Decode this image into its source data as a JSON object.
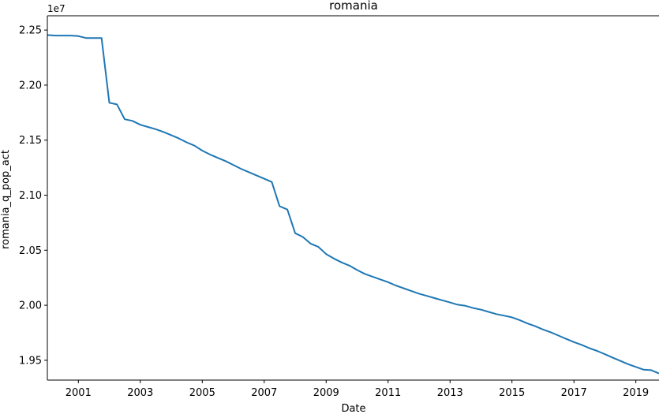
{
  "chart_data": {
    "type": "line",
    "title": "romania",
    "xlabel": "Date",
    "ylabel": "romania_q_pop_act",
    "y_offset_label": "1e7",
    "y_scale": 10000000,
    "xlim": [
      "2000-01-01",
      "2019-10-01"
    ],
    "ylim": [
      1.932,
      2.263
    ],
    "x_ticks": [
      {
        "label": "2001",
        "date": "2001-01-01"
      },
      {
        "label": "2003",
        "date": "2003-01-01"
      },
      {
        "label": "2005",
        "date": "2005-01-01"
      },
      {
        "label": "2007",
        "date": "2007-01-01"
      },
      {
        "label": "2009",
        "date": "2009-01-01"
      },
      {
        "label": "2011",
        "date": "2011-01-01"
      },
      {
        "label": "2013",
        "date": "2013-01-01"
      },
      {
        "label": "2015",
        "date": "2015-01-01"
      },
      {
        "label": "2017",
        "date": "2017-01-01"
      },
      {
        "label": "2019",
        "date": "2019-01-01"
      }
    ],
    "y_ticks": [
      {
        "label": "1.95",
        "value": 1.95
      },
      {
        "label": "2.00",
        "value": 2.0
      },
      {
        "label": "2.05",
        "value": 2.05
      },
      {
        "label": "2.10",
        "value": 2.1
      },
      {
        "label": "2.15",
        "value": 2.15
      },
      {
        "label": "2.20",
        "value": 2.2
      },
      {
        "label": "2.25",
        "value": 2.25
      }
    ],
    "grid": false,
    "line_color": "#1f77b4",
    "series": [
      {
        "x": [
          "2000-01-01",
          "2000-04-01",
          "2000-07-01",
          "2000-10-01",
          "2001-01-01",
          "2001-04-01",
          "2001-07-01",
          "2001-10-01",
          "2002-01-01",
          "2002-04-01",
          "2002-07-01",
          "2002-10-01",
          "2003-01-01",
          "2003-04-01",
          "2003-07-01",
          "2003-10-01",
          "2004-01-01",
          "2004-04-01",
          "2004-07-01",
          "2004-10-01",
          "2005-01-01",
          "2005-04-01",
          "2005-07-01",
          "2005-10-01",
          "2006-01-01",
          "2006-04-01",
          "2006-07-01",
          "2006-10-01",
          "2007-01-01",
          "2007-04-01",
          "2007-07-01",
          "2007-10-01",
          "2008-01-01",
          "2008-04-01",
          "2008-07-01",
          "2008-10-01",
          "2009-01-01",
          "2009-04-01",
          "2009-07-01",
          "2009-10-01",
          "2010-01-01",
          "2010-04-01",
          "2010-07-01",
          "2010-10-01",
          "2011-01-01",
          "2011-04-01",
          "2011-07-01",
          "2011-10-01",
          "2012-01-01",
          "2012-04-01",
          "2012-07-01",
          "2012-10-01",
          "2013-01-01",
          "2013-04-01",
          "2013-07-01",
          "2013-10-01",
          "2014-01-01",
          "2014-04-01",
          "2014-07-01",
          "2014-10-01",
          "2015-01-01",
          "2015-04-01",
          "2015-07-01",
          "2015-10-01",
          "2016-01-01",
          "2016-04-01",
          "2016-07-01",
          "2016-10-01",
          "2017-01-01",
          "2017-04-01",
          "2017-07-01",
          "2017-10-01",
          "2018-01-01",
          "2018-04-01",
          "2018-07-01",
          "2018-10-01",
          "2019-01-01",
          "2019-04-01",
          "2019-07-01",
          "2019-10-01"
        ],
        "y": [
          2.2455,
          2.245,
          2.245,
          2.245,
          2.2445,
          2.2428,
          2.2428,
          2.2428,
          2.184,
          2.1825,
          2.169,
          2.1675,
          2.164,
          2.162,
          2.16,
          2.1575,
          2.1545,
          2.1515,
          2.148,
          2.145,
          2.1405,
          2.137,
          2.134,
          2.131,
          2.1275,
          2.124,
          2.121,
          2.118,
          2.115,
          2.112,
          2.09,
          2.087,
          2.0655,
          2.062,
          2.056,
          2.053,
          2.0465,
          2.0425,
          2.039,
          2.036,
          2.032,
          2.0285,
          2.026,
          2.0235,
          2.021,
          2.018,
          2.0155,
          2.013,
          2.0105,
          2.0085,
          2.0065,
          2.0045,
          2.0025,
          2.0005,
          1.9995,
          1.9975,
          1.996,
          1.994,
          1.992,
          1.9905,
          1.989,
          1.9865,
          1.9835,
          1.981,
          1.978,
          1.9755,
          1.9725,
          1.9695,
          1.9665,
          1.964,
          1.961,
          1.9585,
          1.9555,
          1.9525,
          1.9495,
          1.9465,
          1.944,
          1.9415,
          1.941,
          1.938
        ]
      }
    ]
  }
}
